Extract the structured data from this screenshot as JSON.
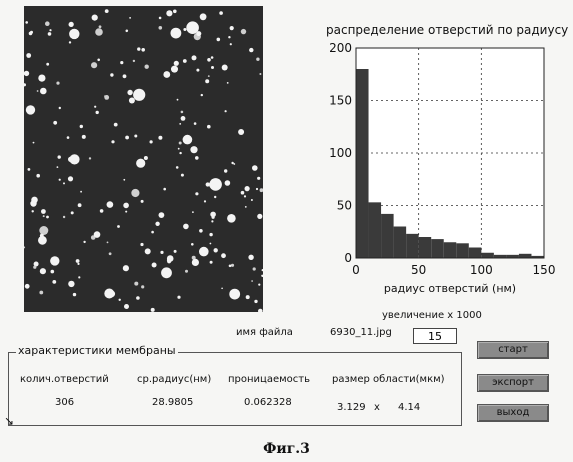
{
  "chart_data": {
    "type": "bar",
    "title": "распределение отверстий по радиусу",
    "xlabel": "радиус отверстий (нм)",
    "ylabel": "",
    "xlim": [
      0,
      150
    ],
    "ylim": [
      0,
      200
    ],
    "xticks": [
      "0",
      "50",
      "100",
      "150"
    ],
    "yticks": [
      "0",
      "50",
      "100",
      "150",
      "200"
    ],
    "grid": true,
    "bin_width": 10,
    "bins": [
      {
        "x": 0,
        "value": 180
      },
      {
        "x": 10,
        "value": 53
      },
      {
        "x": 20,
        "value": 42
      },
      {
        "x": 30,
        "value": 30
      },
      {
        "x": 40,
        "value": 23
      },
      {
        "x": 50,
        "value": 20
      },
      {
        "x": 60,
        "value": 18
      },
      {
        "x": 70,
        "value": 15
      },
      {
        "x": 80,
        "value": 14
      },
      {
        "x": 90,
        "value": 10
      },
      {
        "x": 100,
        "value": 5
      },
      {
        "x": 110,
        "value": 3
      },
      {
        "x": 120,
        "value": 3
      },
      {
        "x": 130,
        "value": 4
      },
      {
        "x": 140,
        "value": 2
      }
    ],
    "bar_color": "#3a3a3a"
  },
  "zoom": {
    "label": "увеличение  x 1000"
  },
  "file": {
    "label": "имя файла",
    "value": "6930_11.jpg"
  },
  "zoom_field": {
    "value": "15"
  },
  "membrane": {
    "title": "характеристики мембраны",
    "holes_label": "колич.отверстий",
    "holes_value": "306",
    "radius_label": "ср.радиус(нм)",
    "radius_value": "28.9805",
    "perm_label": "проницаемость",
    "perm_value": "0.062328",
    "area_label": "размер области(мкм)",
    "area_w": "3.129",
    "area_x": "x",
    "area_h": "4.14"
  },
  "buttons": {
    "start": "старт",
    "export": "экспорт",
    "exit": "выход"
  },
  "caption": "Фиг.3",
  "colors": {
    "image_bg": "#2b2b2b",
    "button": "#8a8a8a"
  }
}
